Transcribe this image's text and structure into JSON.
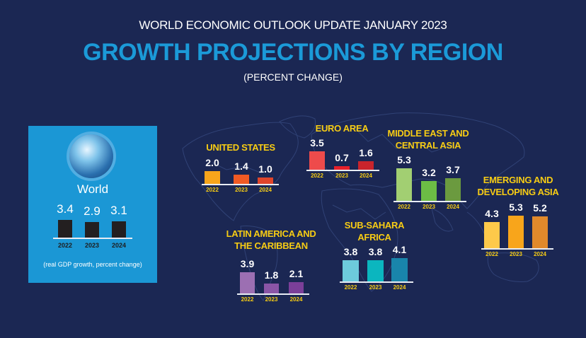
{
  "header": {
    "supertitle": "WORLD ECONOMIC OUTLOOK UPDATE JANUARY 2023",
    "title": "GROWTH PROJECTIONS BY REGION",
    "subtitle": "(PERCENT CHANGE)"
  },
  "colors": {
    "background": "#1b2753",
    "title_blue": "#1b9ad8",
    "region_title": "#f7cc14",
    "world_panel": "#1b97d5"
  },
  "chart_data": {
    "type": "bar",
    "title": "GROWTH PROJECTIONS BY REGION",
    "unit": "percent change",
    "categories": [
      "2022",
      "2023",
      "2024"
    ],
    "world": {
      "name": "World",
      "note": "(real GDP growth, percent change)",
      "values": [
        3.4,
        2.9,
        3.1
      ],
      "labels": [
        "3.4",
        "2.9",
        "3.1"
      ],
      "colors": [
        "#231f20",
        "#231f20",
        "#231f20"
      ]
    },
    "series": [
      {
        "id": "us",
        "name": [
          "UNITED STATES"
        ],
        "values": [
          2.0,
          1.4,
          1.0
        ],
        "labels": [
          "2.0",
          "1.4",
          "1.0"
        ],
        "colors": [
          "#f8a51b",
          "#f15a24",
          "#e0452b"
        ]
      },
      {
        "id": "euro",
        "name": [
          "EURO AREA"
        ],
        "values": [
          3.5,
          0.7,
          1.6
        ],
        "labels": [
          "3.5",
          "0.7",
          "1.6"
        ],
        "colors": [
          "#ee4b4b",
          "#e8202a",
          "#c9242c"
        ]
      },
      {
        "id": "meca",
        "name": [
          "MIDDLE EAST AND",
          "CENTRAL ASIA"
        ],
        "values": [
          5.3,
          3.2,
          3.7
        ],
        "labels": [
          "5.3",
          "3.2",
          "3.7"
        ],
        "colors": [
          "#a2cf72",
          "#6cbd45",
          "#6b9a3f"
        ]
      },
      {
        "id": "eda",
        "name": [
          "EMERGING AND",
          "DEVELOPING ASIA"
        ],
        "values": [
          4.3,
          5.3,
          5.2
        ],
        "labels": [
          "4.3",
          "5.3",
          "5.2"
        ],
        "colors": [
          "#fdc94a",
          "#f8a51b",
          "#e1892b"
        ]
      },
      {
        "id": "lac",
        "name": [
          "LATIN AMERICA AND",
          "THE CARIBBEAN"
        ],
        "values": [
          3.9,
          1.8,
          2.1
        ],
        "labels": [
          "3.9",
          "1.8",
          "2.1"
        ],
        "colors": [
          "#9c6fb2",
          "#8a55a6",
          "#7b3f99"
        ]
      },
      {
        "id": "ssa",
        "name": [
          "SUB-SAHARA",
          "AFRICA"
        ],
        "values": [
          3.8,
          3.8,
          4.1
        ],
        "labels": [
          "3.8",
          "3.8",
          "4.1"
        ],
        "colors": [
          "#6dcbdc",
          "#0bb6bf",
          "#1985ab"
        ]
      }
    ]
  }
}
